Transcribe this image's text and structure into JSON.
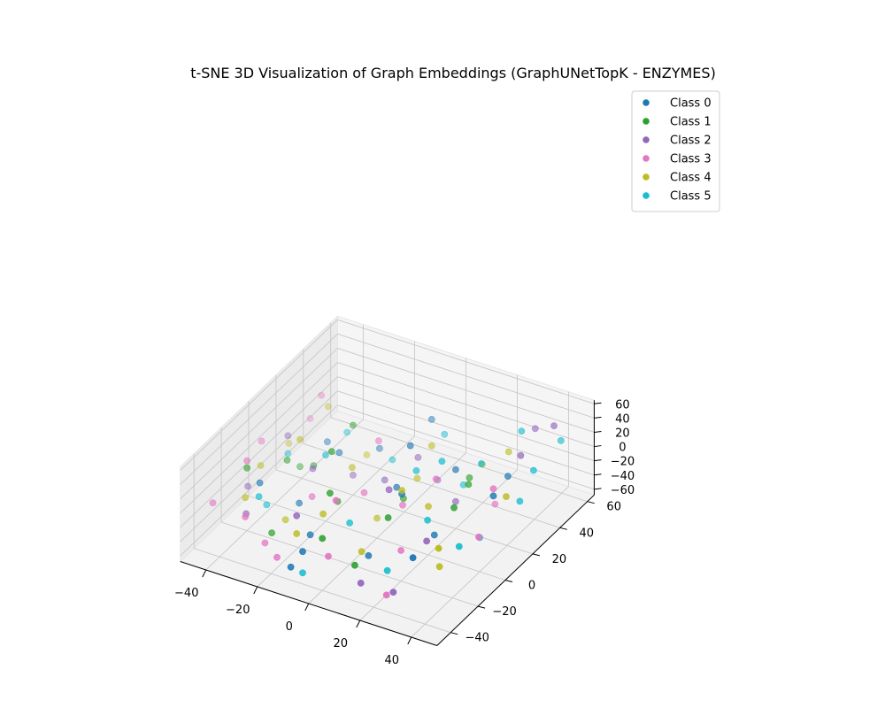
{
  "chart_data": {
    "type": "scatter",
    "projection": "3d",
    "title": "t-SNE 3D Visualization of Graph Embeddings (GraphUNetTopK - ENZYMES)",
    "xlabel": "",
    "ylabel": "",
    "zlabel": "",
    "x_ticks": [
      "−40",
      "−20",
      "0",
      "20",
      "40"
    ],
    "y_ticks": [
      "−40",
      "−20",
      "0",
      "20",
      "40",
      "60"
    ],
    "z_ticks": [
      "−60",
      "−40",
      "−20",
      "0",
      "20",
      "40",
      "60"
    ],
    "xlim": [
      -50,
      50
    ],
    "ylim": [
      -50,
      65
    ],
    "zlim": [
      -68,
      65
    ],
    "grid": true,
    "legend_position": "top-right",
    "series": [
      {
        "name": "Class 0",
        "color": "#1f77b4",
        "points": [
          [
            -30,
            20,
            -5
          ],
          [
            -20,
            10,
            10
          ],
          [
            -10,
            -30,
            -20
          ],
          [
            15,
            -10,
            30
          ],
          [
            25,
            -5,
            -25
          ],
          [
            5,
            15,
            40
          ],
          [
            -5,
            -45,
            -10
          ],
          [
            35,
            30,
            5
          ],
          [
            -25,
            -10,
            -30
          ],
          [
            10,
            -25,
            -35
          ],
          [
            20,
            20,
            15
          ],
          [
            0,
            40,
            25
          ],
          [
            -15,
            30,
            -15
          ],
          [
            30,
            -30,
            -5
          ],
          [
            5,
            5,
            0
          ],
          [
            -35,
            -20,
            5
          ],
          [
            -8,
            -48,
            -30
          ],
          [
            40,
            10,
            20
          ]
        ]
      },
      {
        "name": "Class 1",
        "color": "#2ca02c",
        "points": [
          [
            -40,
            -20,
            20
          ],
          [
            -35,
            0,
            0
          ],
          [
            -25,
            -30,
            -35
          ],
          [
            -10,
            -10,
            -10
          ],
          [
            5,
            10,
            -25
          ],
          [
            15,
            -20,
            15
          ],
          [
            -20,
            20,
            30
          ],
          [
            20,
            30,
            -15
          ],
          [
            -5,
            -25,
            35
          ],
          [
            30,
            0,
            10
          ],
          [
            -30,
            10,
            -20
          ],
          [
            0,
            -40,
            5
          ],
          [
            -15,
            -5,
            45
          ],
          [
            25,
            20,
            0
          ],
          [
            -38,
            15,
            -40
          ],
          [
            10,
            -35,
            -30
          ]
        ]
      },
      {
        "name": "Class 2",
        "color": "#9467bd",
        "points": [
          [
            -45,
            -10,
            -30
          ],
          [
            -40,
            10,
            10
          ],
          [
            -35,
            -30,
            -20
          ],
          [
            -20,
            20,
            -40
          ],
          [
            -10,
            -40,
            25
          ],
          [
            0,
            30,
            -10
          ],
          [
            10,
            -10,
            30
          ],
          [
            20,
            20,
            -30
          ],
          [
            30,
            -20,
            0
          ],
          [
            40,
            30,
            40
          ],
          [
            45,
            45,
            60
          ],
          [
            35,
            50,
            35
          ],
          [
            15,
            -40,
            -40
          ],
          [
            5,
            35,
            -45
          ],
          [
            -25,
            0,
            0
          ],
          [
            25,
            -35,
            -50
          ],
          [
            -5,
            15,
            -20
          ]
        ]
      },
      {
        "name": "Class 3",
        "color": "#e377c2",
        "points": [
          [
            -48,
            -30,
            -20
          ],
          [
            -45,
            0,
            15
          ],
          [
            -40,
            -20,
            30
          ],
          [
            -30,
            -40,
            0
          ],
          [
            -20,
            -10,
            -15
          ],
          [
            -10,
            20,
            20
          ],
          [
            0,
            -30,
            40
          ],
          [
            10,
            0,
            -10
          ],
          [
            20,
            -20,
            -25
          ],
          [
            30,
            30,
            -40
          ],
          [
            40,
            10,
            30
          ],
          [
            -35,
            25,
            45
          ],
          [
            -15,
            -45,
            -30
          ],
          [
            5,
            -45,
            -5
          ],
          [
            15,
            15,
            5
          ],
          [
            -25,
            -35,
            -40
          ],
          [
            -5,
            0,
            -10
          ],
          [
            25,
            -40,
            -45
          ],
          [
            45,
            -10,
            5
          ],
          [
            -42,
            30,
            -5
          ]
        ]
      },
      {
        "name": "Class 4",
        "color": "#bcbd22",
        "points": [
          [
            -45,
            20,
            -25
          ],
          [
            -40,
            -10,
            5
          ],
          [
            -35,
            30,
            20
          ],
          [
            -25,
            -20,
            -35
          ],
          [
            -15,
            10,
            -5
          ],
          [
            -5,
            -30,
            15
          ],
          [
            5,
            20,
            -15
          ],
          [
            15,
            -10,
            35
          ],
          [
            25,
            30,
            10
          ],
          [
            35,
            -20,
            -30
          ],
          [
            45,
            10,
            25
          ],
          [
            -30,
            0,
            35
          ],
          [
            0,
            0,
            -40
          ],
          [
            10,
            -30,
            -20
          ],
          [
            20,
            0,
            0
          ],
          [
            -20,
            30,
            -30
          ],
          [
            -10,
            -40,
            0
          ],
          [
            30,
            40,
            15
          ],
          [
            -38,
            -25,
            -10
          ],
          [
            40,
            -30,
            20
          ],
          [
            8,
            25,
            25
          ]
        ]
      },
      {
        "name": "Class 5",
        "color": "#17becf",
        "points": [
          [
            -40,
            10,
            -15
          ],
          [
            -30,
            -30,
            10
          ],
          [
            -20,
            0,
            25
          ],
          [
            -10,
            30,
            -25
          ],
          [
            0,
            -20,
            -10
          ],
          [
            10,
            10,
            20
          ],
          [
            20,
            -30,
            -35
          ],
          [
            30,
            20,
            35
          ],
          [
            40,
            0,
            -20
          ],
          [
            45,
            30,
            25
          ],
          [
            35,
            40,
            50
          ],
          [
            45,
            50,
            30
          ],
          [
            -5,
            -45,
            -40
          ],
          [
            15,
            35,
            -40
          ],
          [
            25,
            -10,
            5
          ],
          [
            -35,
            -15,
            -35
          ],
          [
            5,
            40,
            10
          ],
          [
            40,
            -15,
            -5
          ],
          [
            -25,
            25,
            5
          ],
          [
            20,
            10,
            45
          ],
          [
            45,
            20,
            0
          ]
        ]
      }
    ]
  }
}
